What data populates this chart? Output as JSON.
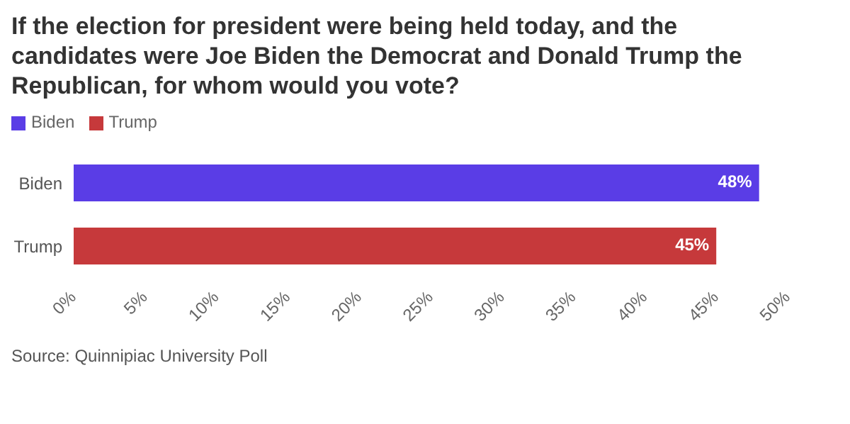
{
  "chart_data": {
    "type": "bar",
    "orientation": "horizontal",
    "title": "If the election for president were being held today, and the candidates were Joe Biden the Democrat and Donald Trump the Republican, for whom would you vote?",
    "categories": [
      "Biden",
      "Trump"
    ],
    "stacked": true,
    "series": [
      {
        "name": "Trump",
        "color": "#c6393b",
        "values": [
          null,
          45
        ],
        "value_labels": [
          null,
          "45%"
        ]
      },
      {
        "name": "Biden",
        "color": "#5a3de6",
        "values": [
          48,
          null
        ],
        "value_labels": [
          "48%",
          null
        ]
      }
    ],
    "xlim": [
      0,
      50
    ],
    "xticks": [
      {
        "value": 0,
        "label": "0%"
      },
      {
        "value": 5,
        "label": "5%"
      },
      {
        "value": 10,
        "label": "10%"
      },
      {
        "value": 15,
        "label": "15%"
      },
      {
        "value": 20,
        "label": "20%"
      },
      {
        "value": 25,
        "label": "25%"
      },
      {
        "value": 30,
        "label": "30%"
      },
      {
        "value": 35,
        "label": "35%"
      },
      {
        "value": 40,
        "label": "40%"
      },
      {
        "value": 45,
        "label": "45%"
      },
      {
        "value": 50,
        "label": "50%"
      }
    ],
    "grid": false,
    "legend": "top left",
    "annotations": [
      "Source: Quinnipiac University Poll"
    ]
  }
}
